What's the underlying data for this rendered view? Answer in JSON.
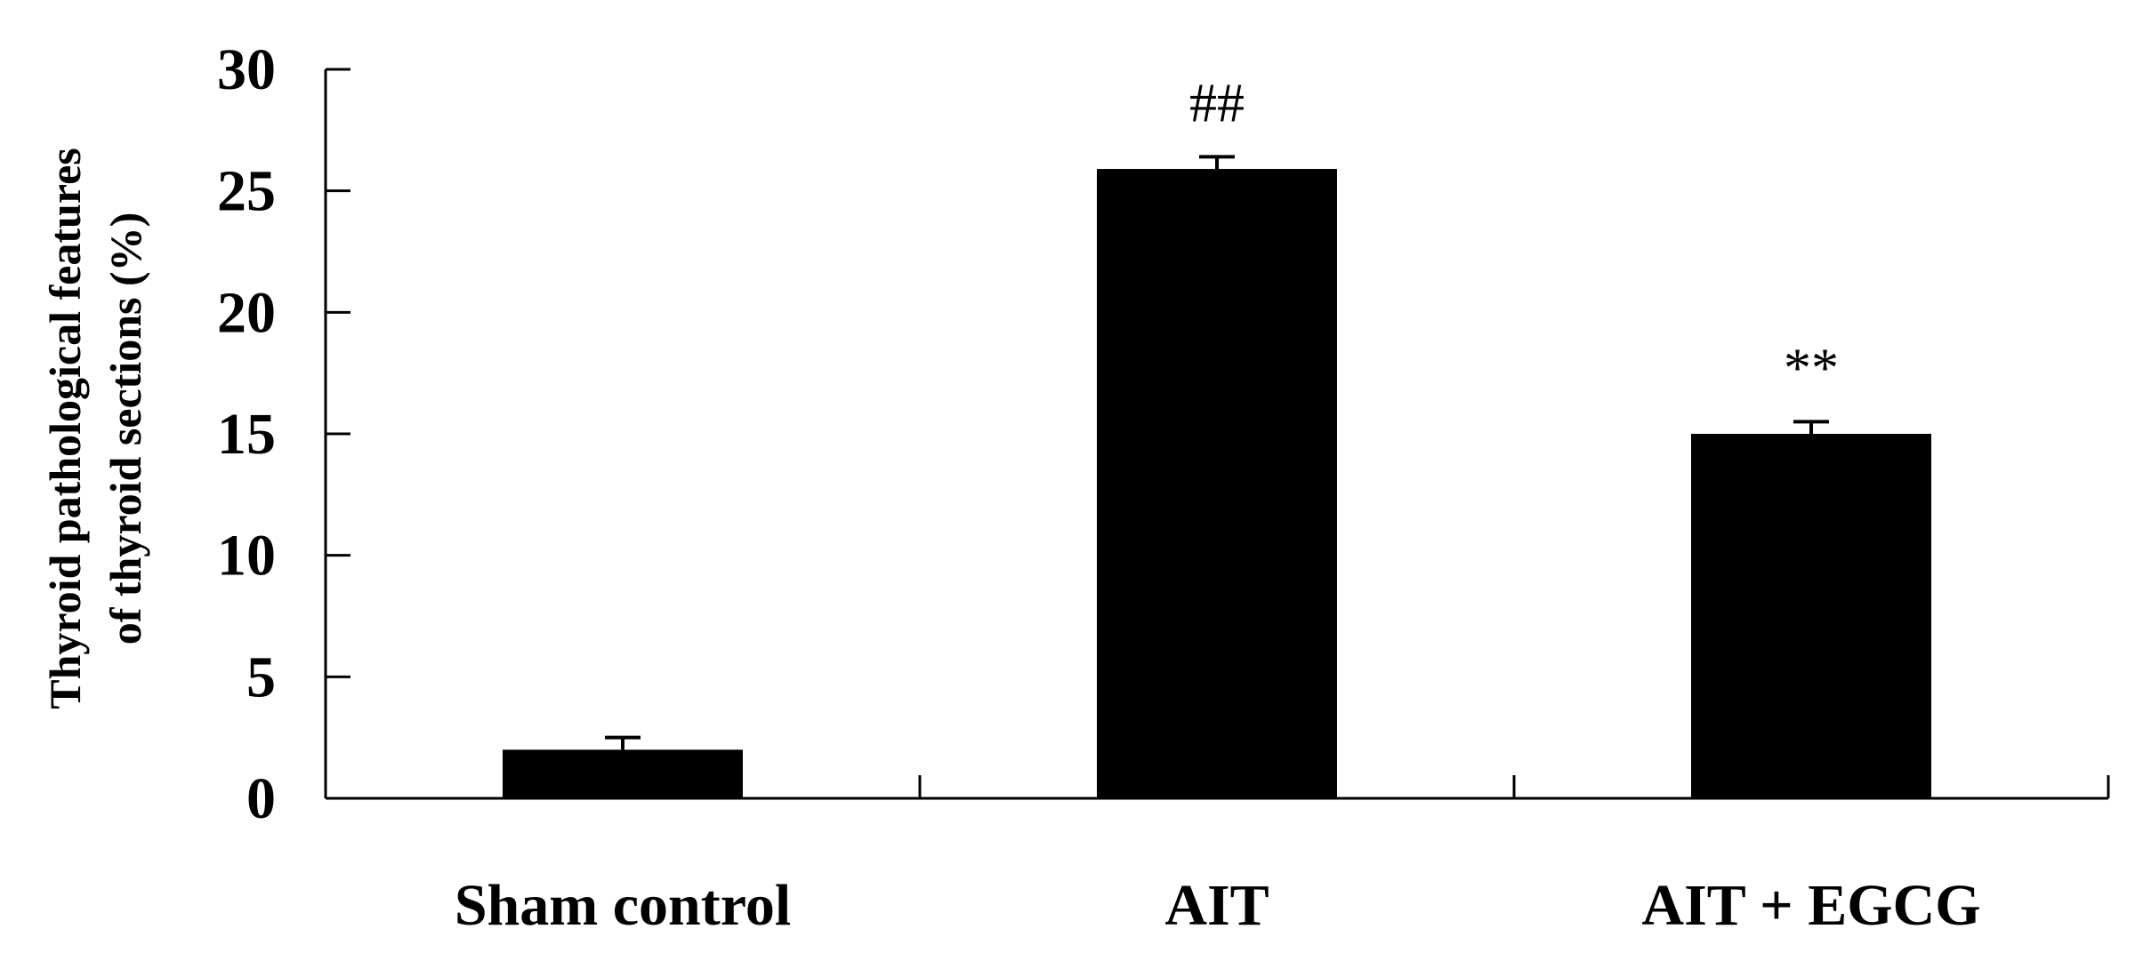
{
  "chart_data": {
    "type": "bar",
    "categories": [
      "Sham control",
      "AIT",
      "AIT + EGCG"
    ],
    "values": [
      2.0,
      25.9,
      15.0
    ],
    "errors": [
      0.5,
      0.5,
      0.5
    ],
    "annotations": [
      "",
      "##",
      "**"
    ],
    "ylabel_lines": [
      "Thyroid pathological features",
      "of thyroid sections (%)"
    ],
    "yticks": [
      0,
      5,
      10,
      15,
      20,
      25,
      30
    ],
    "ylim": [
      0,
      30
    ],
    "bar_color": "#000000",
    "grid": false
  }
}
